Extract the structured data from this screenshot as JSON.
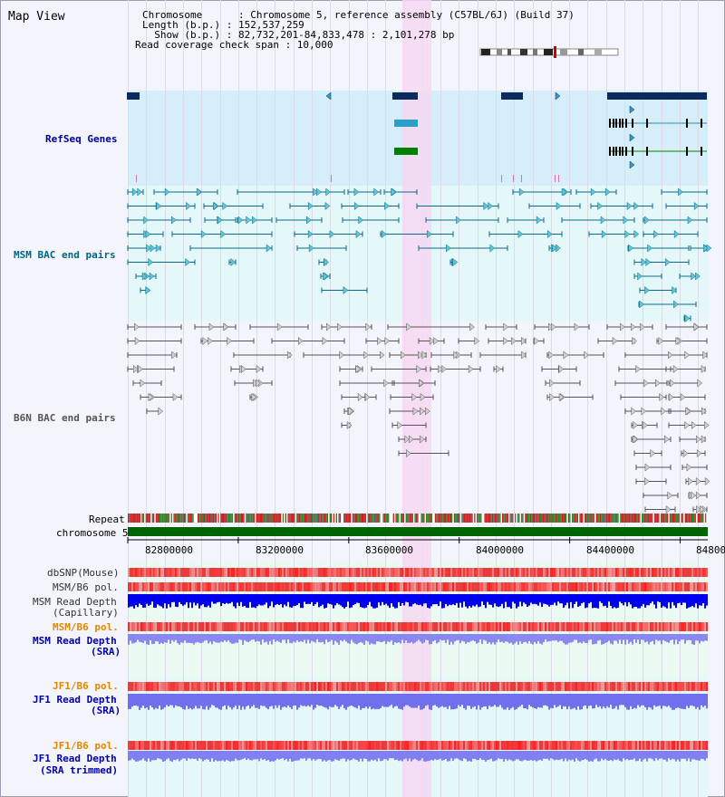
{
  "title": "Map View",
  "header": {
    "chromosome_line": "Chromosome      : Chromosome 5, reference assembly (C57BL/6J) (Build 37)",
    "length_line": "Length (b.p.) : 152,537,259",
    "show_line": "  Show (b.p.) : 82,732,201-84,833,478 : 2,101,278 bp",
    "coverage_line": "Read coverage check span : 10,000"
  },
  "tracks": {
    "refseq": "RefSeq Genes",
    "msm_bac": "MSM BAC end pairs",
    "b6n_bac": "B6N BAC end pairs",
    "repeat": "Repeat",
    "chromosome": "chromosome 5",
    "dbsnp": "dbSNP(Mouse)",
    "msm_b6_pol_1": "MSM/B6 pol.",
    "msm_read_depth_cap_1": "MSM Read Depth",
    "msm_read_depth_cap_2": "(Capillary)",
    "msm_b6_pol_2": "MSM/B6 pol.",
    "msm_read_depth_sra_1": "MSM Read Depth",
    "msm_read_depth_sra_2": "(SRA)",
    "jf1_b6_pol_1": "JF1/B6 pol.",
    "jf1_read_depth_sra_1": "JF1 Read Depth",
    "jf1_read_depth_sra_2": "(SRA)",
    "jf1_b6_pol_2": "JF1/B6 pol.",
    "jf1_read_depth_trim_1": "JF1 Read Depth",
    "jf1_read_depth_trim_2": "(SRA trimmed)"
  },
  "axis": {
    "ticks": [
      "82800000",
      "83200000",
      "83600000",
      "84000000",
      "84400000",
      "84800"
    ]
  },
  "colors": {
    "refseq_label": "#000099",
    "msm_label": "#006680",
    "b6n_label": "#555555",
    "orange_label": "#e08800",
    "blue_label": "#0000aa",
    "highlight": "#f6d8f2",
    "gene_dark": "#0c2a5c",
    "gene_teal": "#2aa0c8",
    "gene_green": "#008000",
    "chromosome_bar": "#006400"
  }
}
